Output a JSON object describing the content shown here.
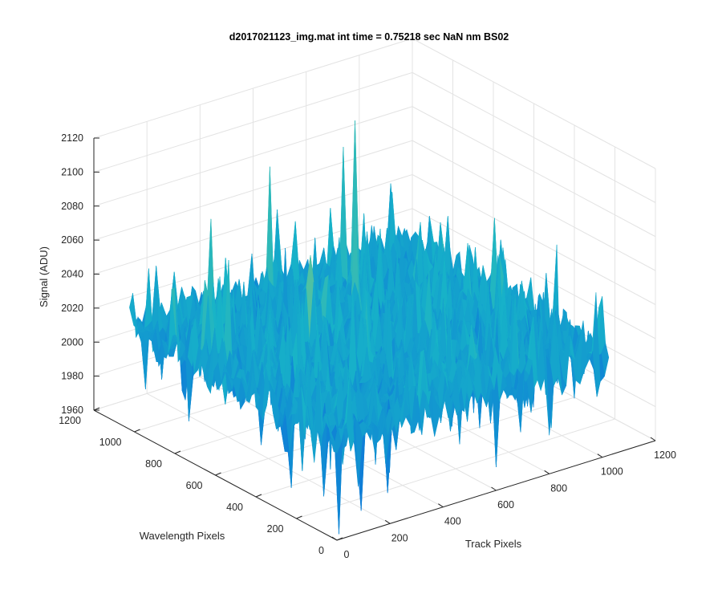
{
  "chart_data": {
    "type": "surface",
    "title": "d2017021123_img.mat int time = 0.75218 sec  NaN nm BS02",
    "xlabel": "Track Pixels",
    "ylabel": "Wavelength Pixels",
    "zlabel": "Signal (ADU)",
    "xlim": [
      0,
      1200
    ],
    "ylim": [
      0,
      1200
    ],
    "zlim": [
      1960,
      2120
    ],
    "x_ticks": [
      "0",
      "200",
      "400",
      "600",
      "800",
      "1000",
      "1200"
    ],
    "y_ticks": [
      "0",
      "200",
      "400",
      "600",
      "800",
      "1000",
      "1200"
    ],
    "z_ticks": [
      "1960",
      "1980",
      "2000",
      "2020",
      "2040",
      "2060",
      "2080",
      "2100",
      "2120"
    ],
    "grid": true,
    "colormap": "parula",
    "surface_summary": {
      "baseline_signal": 2020,
      "noise_range": [
        1985,
        2065
      ],
      "min_signal": 1960,
      "max_signal": 2113,
      "data_extent_x": [
        0,
        1024
      ],
      "data_extent_y": [
        0,
        1024
      ]
    },
    "colors": {
      "low": "#0a5ee0",
      "mid": "#17b3c8",
      "high": "#e8e83c",
      "grid": "#e3e3e3",
      "axis": "#262626"
    }
  }
}
